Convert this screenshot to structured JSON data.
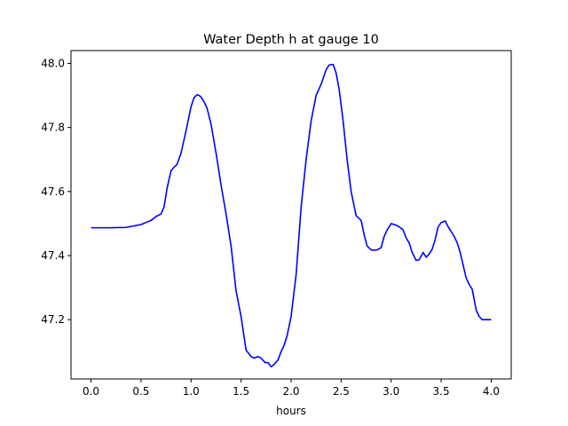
{
  "chart_data": {
    "type": "line",
    "title": "Water Depth h at gauge 10",
    "xlabel": "hours",
    "ylabel": "",
    "xlim": [
      -0.2,
      4.2
    ],
    "ylim": [
      47.015,
      48.04
    ],
    "xticks": [
      0.0,
      0.5,
      1.0,
      1.5,
      2.0,
      2.5,
      3.0,
      3.5,
      4.0
    ],
    "xtick_labels": [
      "0.0",
      "0.5",
      "1.0",
      "1.5",
      "2.0",
      "2.5",
      "3.0",
      "3.5",
      "4.0"
    ],
    "yticks": [
      47.2,
      47.4,
      47.6,
      47.8,
      48.0
    ],
    "ytick_labels": [
      "47.2",
      "47.4",
      "47.6",
      "47.8",
      "48.0"
    ],
    "grid": false,
    "series": [
      {
        "color": "#0000ff",
        "x": [
          0.0,
          0.2,
          0.35,
          0.5,
          0.6,
          0.65,
          0.7,
          0.73,
          0.76,
          0.8,
          0.83,
          0.86,
          0.9,
          0.95,
          1.0,
          1.03,
          1.06,
          1.08,
          1.1,
          1.13,
          1.16,
          1.2,
          1.25,
          1.3,
          1.35,
          1.4,
          1.45,
          1.5,
          1.55,
          1.6,
          1.63,
          1.67,
          1.7,
          1.74,
          1.77,
          1.8,
          1.83,
          1.87,
          1.9,
          1.93,
          1.96,
          2.0,
          2.05,
          2.1,
          2.15,
          2.2,
          2.25,
          2.3,
          2.35,
          2.38,
          2.42,
          2.45,
          2.48,
          2.52,
          2.56,
          2.6,
          2.65,
          2.7,
          2.73,
          2.76,
          2.8,
          2.83,
          2.86,
          2.9,
          2.93,
          2.96,
          3.0,
          3.05,
          3.08,
          3.12,
          3.15,
          3.18,
          3.21,
          3.25,
          3.28,
          3.32,
          3.35,
          3.38,
          3.41,
          3.44,
          3.47,
          3.5,
          3.54,
          3.57,
          3.6,
          3.63,
          3.66,
          3.69,
          3.72,
          3.75,
          3.78,
          3.81,
          3.85,
          3.88,
          3.91,
          3.93,
          3.96,
          4.0
        ],
        "values": [
          47.487,
          47.487,
          47.488,
          47.497,
          47.51,
          47.522,
          47.53,
          47.552,
          47.61,
          47.665,
          47.676,
          47.685,
          47.72,
          47.79,
          47.865,
          47.893,
          47.902,
          47.9,
          47.895,
          47.88,
          47.86,
          47.81,
          47.72,
          47.62,
          47.53,
          47.43,
          47.29,
          47.21,
          47.105,
          47.085,
          47.08,
          47.085,
          47.08,
          47.066,
          47.066,
          47.053,
          47.06,
          47.075,
          47.1,
          47.12,
          47.15,
          47.21,
          47.34,
          47.55,
          47.7,
          47.82,
          47.9,
          47.935,
          47.98,
          47.995,
          47.997,
          47.97,
          47.92,
          47.82,
          47.7,
          47.6,
          47.525,
          47.51,
          47.465,
          47.43,
          47.418,
          47.417,
          47.418,
          47.425,
          47.46,
          47.48,
          47.5,
          47.495,
          47.49,
          47.48,
          47.455,
          47.44,
          47.41,
          47.385,
          47.387,
          47.41,
          47.395,
          47.405,
          47.42,
          47.45,
          47.49,
          47.503,
          47.508,
          47.49,
          47.475,
          47.46,
          47.44,
          47.41,
          47.37,
          47.33,
          47.31,
          47.295,
          47.23,
          47.21,
          47.2,
          47.2,
          47.2,
          47.2
        ]
      }
    ]
  }
}
